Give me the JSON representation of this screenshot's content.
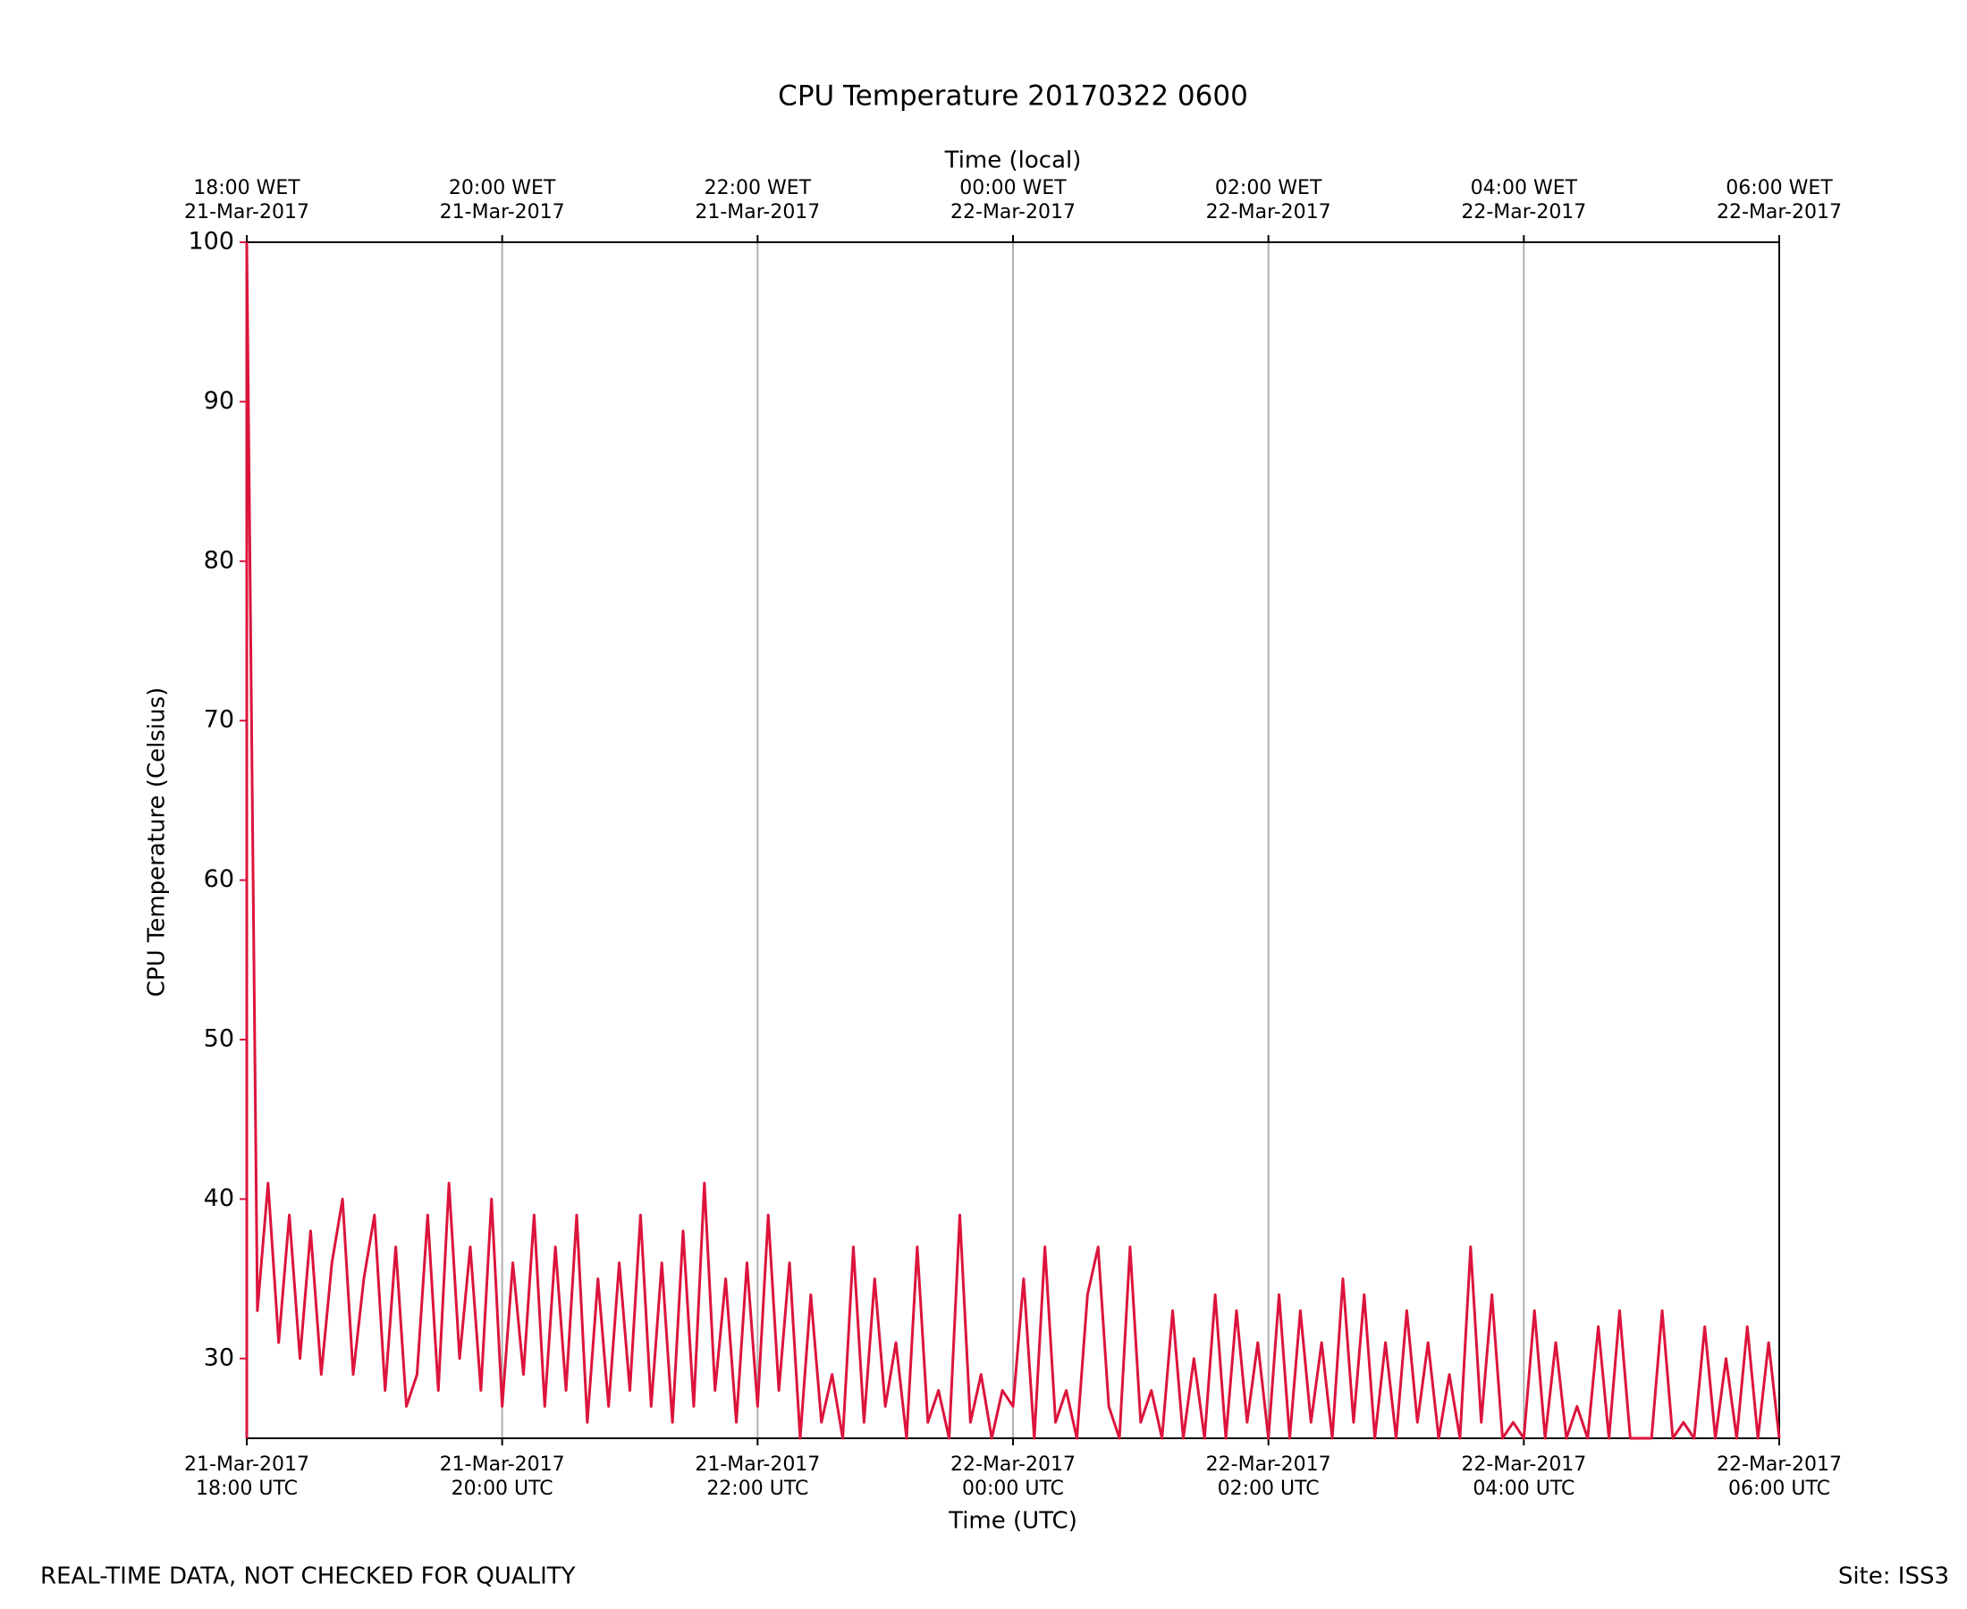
{
  "chart_data": {
    "type": "line",
    "title": "CPU Temperature 20170322 0600",
    "xlabel": "Time (UTC)",
    "x2label": "Time (local)",
    "ylabel": "CPU Temperature (Celsius)",
    "color": "#dc143c",
    "grid": "x",
    "xlim": [
      "2017-03-21T18:00",
      "2017-03-22T06:00"
    ],
    "ylim": [
      25,
      100
    ],
    "yticks": [
      30,
      40,
      50,
      60,
      70,
      80,
      90,
      100
    ],
    "xticks": [
      {
        "value": "2017-03-21T18:00",
        "label": [
          "21-Mar-2017",
          "18:00 UTC"
        ]
      },
      {
        "value": "2017-03-21T20:00",
        "label": [
          "21-Mar-2017",
          "20:00 UTC"
        ]
      },
      {
        "value": "2017-03-21T22:00",
        "label": [
          "21-Mar-2017",
          "22:00 UTC"
        ]
      },
      {
        "value": "2017-03-22T00:00",
        "label": [
          "22-Mar-2017",
          "00:00 UTC"
        ]
      },
      {
        "value": "2017-03-22T02:00",
        "label": [
          "22-Mar-2017",
          "02:00 UTC"
        ]
      },
      {
        "value": "2017-03-22T04:00",
        "label": [
          "22-Mar-2017",
          "04:00 UTC"
        ]
      },
      {
        "value": "2017-03-22T06:00",
        "label": [
          "22-Mar-2017",
          "06:00 UTC"
        ]
      }
    ],
    "x2ticks": [
      {
        "value": "2017-03-21T18:00",
        "label": [
          "18:00 WET",
          "21-Mar-2017"
        ]
      },
      {
        "value": "2017-03-21T20:00",
        "label": [
          "20:00 WET",
          "21-Mar-2017"
        ]
      },
      {
        "value": "2017-03-21T22:00",
        "label": [
          "22:00 WET",
          "21-Mar-2017"
        ]
      },
      {
        "value": "2017-03-22T00:00",
        "label": [
          "00:00 WET",
          "22-Mar-2017"
        ]
      },
      {
        "value": "2017-03-22T02:00",
        "label": [
          "02:00 WET",
          "22-Mar-2017"
        ]
      },
      {
        "value": "2017-03-22T04:00",
        "label": [
          "04:00 WET",
          "22-Mar-2017"
        ]
      },
      {
        "value": "2017-03-22T06:00",
        "label": [
          "06:00 WET",
          "22-Mar-2017"
        ]
      }
    ],
    "x": [
      "2017-03-21T18:00",
      "2017-03-21T18:05",
      "2017-03-21T18:10",
      "2017-03-21T18:15",
      "2017-03-21T18:20",
      "2017-03-21T18:25",
      "2017-03-21T18:30",
      "2017-03-21T18:35",
      "2017-03-21T18:40",
      "2017-03-21T18:45",
      "2017-03-21T18:50",
      "2017-03-21T18:55",
      "2017-03-21T19:00",
      "2017-03-21T19:05",
      "2017-03-21T19:10",
      "2017-03-21T19:15",
      "2017-03-21T19:20",
      "2017-03-21T19:25",
      "2017-03-21T19:30",
      "2017-03-21T19:35",
      "2017-03-21T19:40",
      "2017-03-21T19:45",
      "2017-03-21T19:50",
      "2017-03-21T19:55",
      "2017-03-21T20:00",
      "2017-03-21T20:05",
      "2017-03-21T20:10",
      "2017-03-21T20:15",
      "2017-03-21T20:20",
      "2017-03-21T20:25",
      "2017-03-21T20:30",
      "2017-03-21T20:35",
      "2017-03-21T20:40",
      "2017-03-21T20:45",
      "2017-03-21T20:50",
      "2017-03-21T20:55",
      "2017-03-21T21:00",
      "2017-03-21T21:05",
      "2017-03-21T21:10",
      "2017-03-21T21:15",
      "2017-03-21T21:20",
      "2017-03-21T21:25",
      "2017-03-21T21:30",
      "2017-03-21T21:35",
      "2017-03-21T21:40",
      "2017-03-21T21:45",
      "2017-03-21T21:50",
      "2017-03-21T21:55",
      "2017-03-21T22:00",
      "2017-03-21T22:05",
      "2017-03-21T22:10",
      "2017-03-21T22:15",
      "2017-03-21T22:20",
      "2017-03-21T22:25",
      "2017-03-21T22:30",
      "2017-03-21T22:35",
      "2017-03-21T22:40",
      "2017-03-21T22:45",
      "2017-03-21T22:50",
      "2017-03-21T22:55",
      "2017-03-21T23:00",
      "2017-03-21T23:05",
      "2017-03-21T23:10",
      "2017-03-21T23:15",
      "2017-03-21T23:20",
      "2017-03-21T23:25",
      "2017-03-21T23:30",
      "2017-03-21T23:35",
      "2017-03-21T23:40",
      "2017-03-21T23:45",
      "2017-03-21T23:50",
      "2017-03-21T23:55",
      "2017-03-22T00:00",
      "2017-03-22T00:05",
      "2017-03-22T00:10",
      "2017-03-22T00:15",
      "2017-03-22T00:20",
      "2017-03-22T00:25",
      "2017-03-22T00:30",
      "2017-03-22T00:35",
      "2017-03-22T00:40",
      "2017-03-22T00:45",
      "2017-03-22T00:50",
      "2017-03-22T00:55",
      "2017-03-22T01:00",
      "2017-03-22T01:05",
      "2017-03-22T01:10",
      "2017-03-22T01:15",
      "2017-03-22T01:20",
      "2017-03-22T01:25",
      "2017-03-22T01:30",
      "2017-03-22T01:35",
      "2017-03-22T01:40",
      "2017-03-22T01:45",
      "2017-03-22T01:50",
      "2017-03-22T01:55",
      "2017-03-22T02:00",
      "2017-03-22T02:05",
      "2017-03-22T02:10",
      "2017-03-22T02:15",
      "2017-03-22T02:20",
      "2017-03-22T02:25",
      "2017-03-22T02:30",
      "2017-03-22T02:35",
      "2017-03-22T02:40",
      "2017-03-22T02:45",
      "2017-03-22T02:50",
      "2017-03-22T02:55",
      "2017-03-22T03:00",
      "2017-03-22T03:05",
      "2017-03-22T03:10",
      "2017-03-22T03:15",
      "2017-03-22T03:20",
      "2017-03-22T03:25",
      "2017-03-22T03:30",
      "2017-03-22T03:35",
      "2017-03-22T03:40",
      "2017-03-22T03:45",
      "2017-03-22T03:50",
      "2017-03-22T03:55",
      "2017-03-22T04:00",
      "2017-03-22T04:05",
      "2017-03-22T04:10",
      "2017-03-22T04:15",
      "2017-03-22T04:20",
      "2017-03-22T04:25",
      "2017-03-22T04:30",
      "2017-03-22T04:35",
      "2017-03-22T04:40",
      "2017-03-22T04:45",
      "2017-03-22T04:50",
      "2017-03-22T04:55",
      "2017-03-22T05:00",
      "2017-03-22T05:05",
      "2017-03-22T05:10",
      "2017-03-22T05:15",
      "2017-03-22T05:20",
      "2017-03-22T05:25",
      "2017-03-22T05:30",
      "2017-03-22T05:35",
      "2017-03-22T05:40",
      "2017-03-22T05:45",
      "2017-03-22T05:50",
      "2017-03-22T05:55",
      "2017-03-22T06:00"
    ],
    "values": [
      100,
      33,
      41,
      31,
      39,
      30,
      38,
      29,
      36,
      40,
      29,
      35,
      39,
      28,
      37,
      27,
      29,
      39,
      28,
      41,
      30,
      37,
      28,
      40,
      27,
      36,
      29,
      39,
      27,
      37,
      28,
      39,
      26,
      35,
      27,
      36,
      28,
      39,
      27,
      36,
      26,
      38,
      27,
      41,
      28,
      35,
      26,
      36,
      27,
      39,
      28,
      36,
      25,
      34,
      26,
      29,
      25,
      37,
      26,
      35,
      27,
      31,
      25,
      37,
      26,
      28,
      25,
      39,
      26,
      29,
      25,
      28,
      27,
      35,
      25,
      37,
      26,
      28,
      25,
      34,
      37,
      27,
      25,
      37,
      26,
      28,
      25,
      33,
      25,
      30,
      25,
      34,
      25,
      33,
      26,
      31,
      25,
      34,
      25,
      33,
      26,
      31,
      25,
      35,
      26,
      34,
      25,
      31,
      25,
      33,
      26,
      31,
      25,
      29,
      25,
      37,
      26,
      34,
      25,
      26,
      25,
      33,
      25,
      31,
      25,
      27,
      25,
      32,
      25,
      33,
      25,
      25,
      25,
      33,
      25,
      26,
      25,
      32,
      25,
      30,
      25,
      32,
      25,
      31,
      25
    ]
  },
  "footer": {
    "left": "REAL-TIME DATA, NOT CHECKED FOR QUALITY",
    "right": "Site: ISS3"
  }
}
